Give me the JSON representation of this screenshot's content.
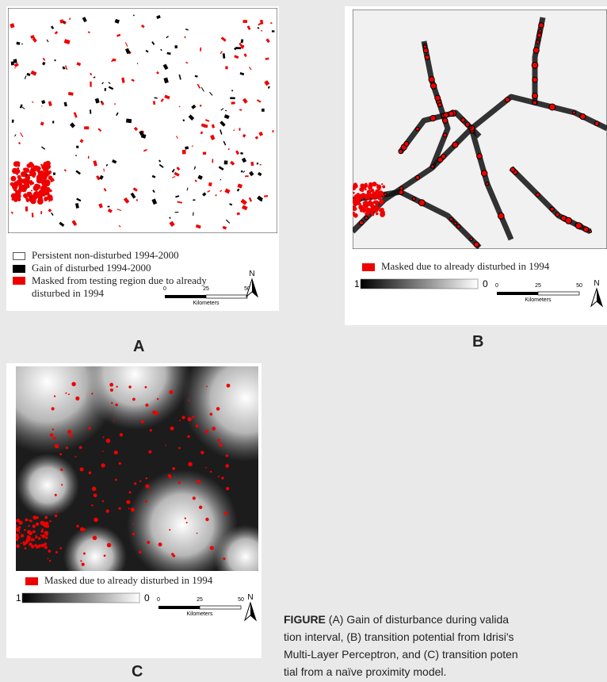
{
  "panels": [
    {
      "label": "A",
      "legend": [
        "Persistent non-disturbed 1994-2000",
        "Gain of disturbed 1994-2000",
        "Masked from testing region due to already disturbed in 1994"
      ],
      "scale": {
        "ticks": [
          "0",
          "25",
          "50"
        ],
        "unit": "Kilometers"
      },
      "north": "N"
    },
    {
      "label": "B",
      "legend": [
        "Masked due to already disturbed in 1994"
      ],
      "ramp": [
        "1",
        "0"
      ],
      "scale": {
        "ticks": [
          "0",
          "25",
          "50"
        ],
        "unit": "Kilometers"
      },
      "north": "N"
    },
    {
      "label": "C",
      "legend": [
        "Masked due to already disturbed in 1994"
      ],
      "ramp": [
        "1",
        "0"
      ],
      "scale": {
        "ticks": [
          "0",
          "25",
          "50"
        ],
        "unit": "Kilometers"
      },
      "north": "N"
    }
  ],
  "caption": {
    "label": "FIGURE",
    "lines": [
      "(A) Gain of disturbance during valida",
      "tion interval, (B) transition potential from Idrisi's",
      "Multi-Layer Perceptron, and (C) transition poten",
      "tial from a naïve proximity model."
    ]
  }
}
